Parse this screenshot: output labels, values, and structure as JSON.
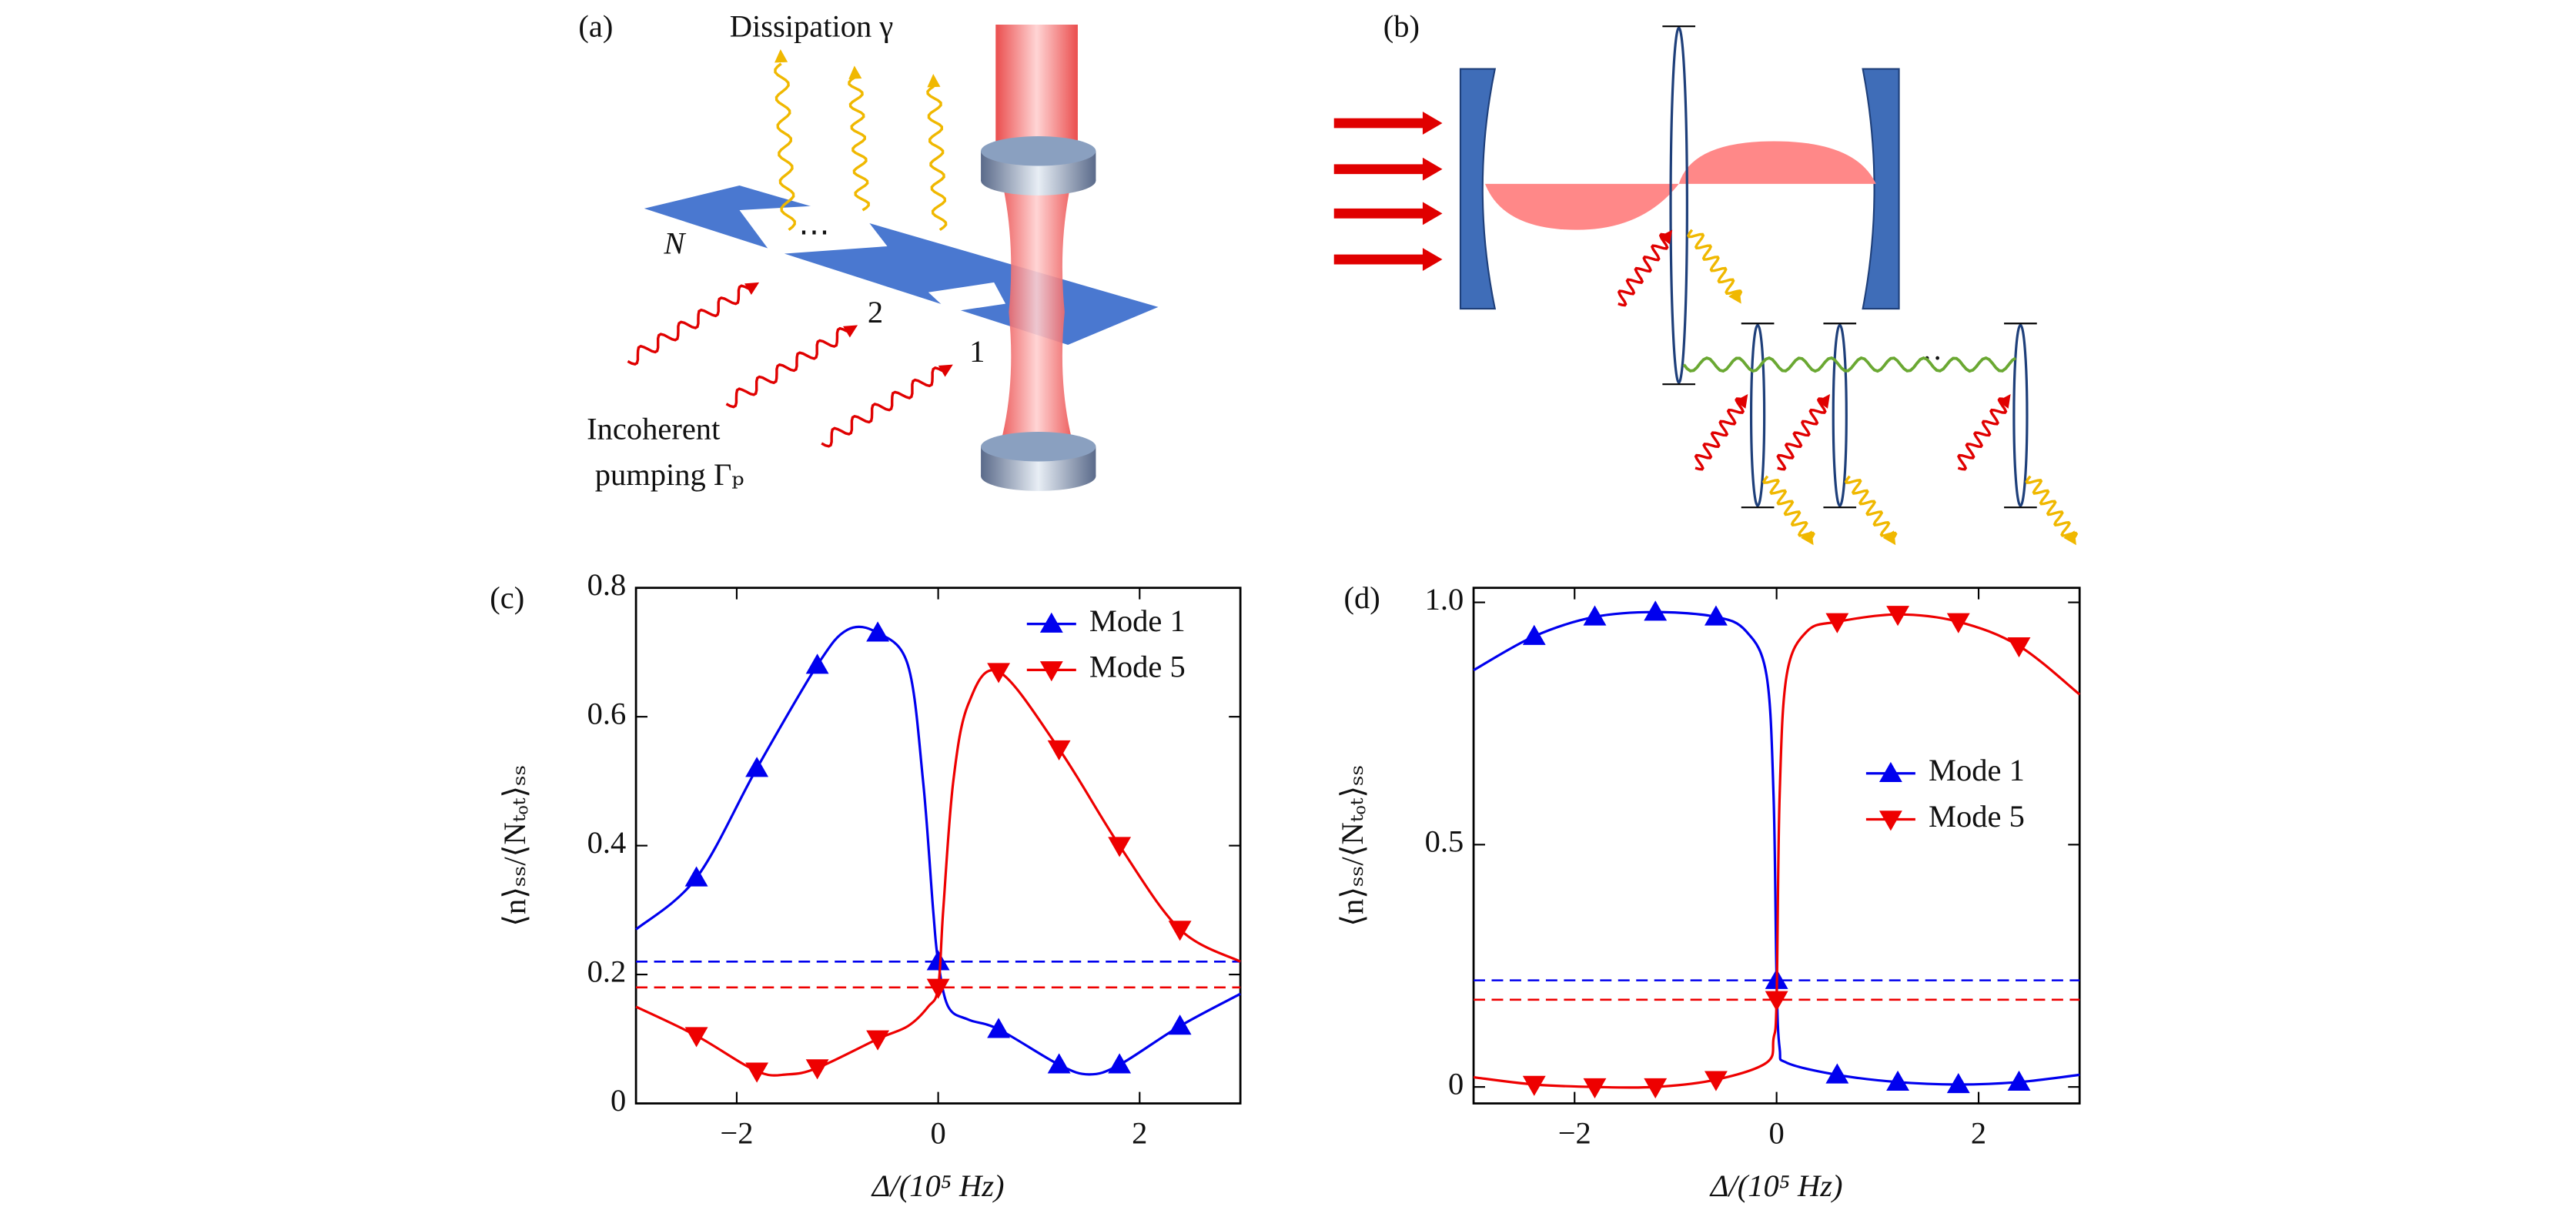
{
  "diagrams": {
    "a": {
      "panel": "(a)",
      "dissipation": "Dissipation γ",
      "n_label": "N",
      "dots": "⋯",
      "label_2": "2",
      "label_1": "1",
      "pump_line1": "Incoherent",
      "pump_line2": "pumping Γₚ"
    },
    "b": {
      "panel": "(b)",
      "dots": "··"
    }
  },
  "chart_data": [
    {
      "type": "line",
      "panel": "(c)",
      "xlabel": "Δ/(10⁵ Hz)",
      "ylabel": "⟨n⟩ₛₛ/⟨Nₜₒₜ⟩ₛₛ",
      "xlim": [
        -3,
        3
      ],
      "ylim": [
        0,
        0.8
      ],
      "xticks": [
        {
          "value": -2,
          "label": "−2"
        },
        0,
        2
      ],
      "yticks": [
        0,
        0.2,
        0.4,
        0.6,
        0.8
      ],
      "legend": "upper right",
      "series": [
        {
          "name": "Mode 1",
          "color": "#0000ee",
          "marker": "triangle-up",
          "x": [
            -3,
            -2.4,
            -1.8,
            -1.2,
            -0.9,
            -0.6,
            -0.3,
            -0.15,
            -0.05,
            0,
            0.1,
            0.3,
            0.6,
            1.2,
            1.5,
            1.8,
            2.4,
            3
          ],
          "values": [
            0.27,
            0.35,
            0.52,
            0.68,
            0.735,
            0.73,
            0.68,
            0.5,
            0.3,
            0.22,
            0.15,
            0.13,
            0.115,
            0.06,
            0.045,
            0.06,
            0.12,
            0.17
          ]
        },
        {
          "name": "Mode 5",
          "color": "#ee0000",
          "marker": "triangle-down",
          "x": [
            -3,
            -2.4,
            -1.8,
            -1.5,
            -1.2,
            -0.6,
            -0.3,
            -0.1,
            0,
            0.05,
            0.15,
            0.3,
            0.6,
            1.2,
            1.8,
            2.4,
            3
          ],
          "values": [
            0.15,
            0.105,
            0.05,
            0.045,
            0.055,
            0.1,
            0.12,
            0.15,
            0.18,
            0.3,
            0.5,
            0.62,
            0.67,
            0.55,
            0.4,
            0.27,
            0.22
          ]
        }
      ],
      "reference_lines": [
        {
          "value": 0.22,
          "color": "#0000ee"
        },
        {
          "value": 0.18,
          "color": "#ee0000"
        }
      ]
    },
    {
      "type": "line",
      "panel": "(d)",
      "xlabel": "Δ/(10⁵ Hz)",
      "ylabel": "⟨n⟩ₛₛ/⟨Nₜₒₜ⟩ₛₛ",
      "xlim": [
        -3,
        3
      ],
      "ylim": [
        -0.034,
        1.03
      ],
      "xticks": [
        {
          "value": -2,
          "label": "−2"
        },
        0,
        2
      ],
      "yticks": [
        0,
        0.5,
        {
          "value": 1,
          "label": "1.0"
        }
      ],
      "legend": "center right",
      "series": [
        {
          "name": "Mode 1",
          "color": "#0000ee",
          "marker": "triangle-up",
          "x": [
            -3,
            -2.4,
            -1.8,
            -1.2,
            -0.6,
            -0.3,
            -0.1,
            -0.03,
            0,
            0.03,
            0.1,
            0.6,
            1.2,
            1.8,
            2.4,
            3
          ],
          "values": [
            0.86,
            0.93,
            0.97,
            0.98,
            0.97,
            0.94,
            0.85,
            0.6,
            0.22,
            0.08,
            0.05,
            0.025,
            0.01,
            0.005,
            0.01,
            0.025
          ]
        },
        {
          "name": "Mode 5",
          "color": "#ee0000",
          "marker": "triangle-down",
          "x": [
            -3,
            -2.4,
            -1.8,
            -1.2,
            -0.6,
            -0.1,
            -0.03,
            0,
            0.03,
            0.1,
            0.3,
            0.6,
            1.2,
            1.8,
            2.4,
            3
          ],
          "values": [
            0.02,
            0.005,
            0,
            0,
            0.015,
            0.05,
            0.1,
            0.18,
            0.6,
            0.85,
            0.94,
            0.96,
            0.975,
            0.96,
            0.91,
            0.81
          ]
        }
      ],
      "reference_lines": [
        {
          "value": 0.22,
          "color": "#0000ee"
        },
        {
          "value": 0.18,
          "color": "#ee0000"
        }
      ]
    }
  ]
}
